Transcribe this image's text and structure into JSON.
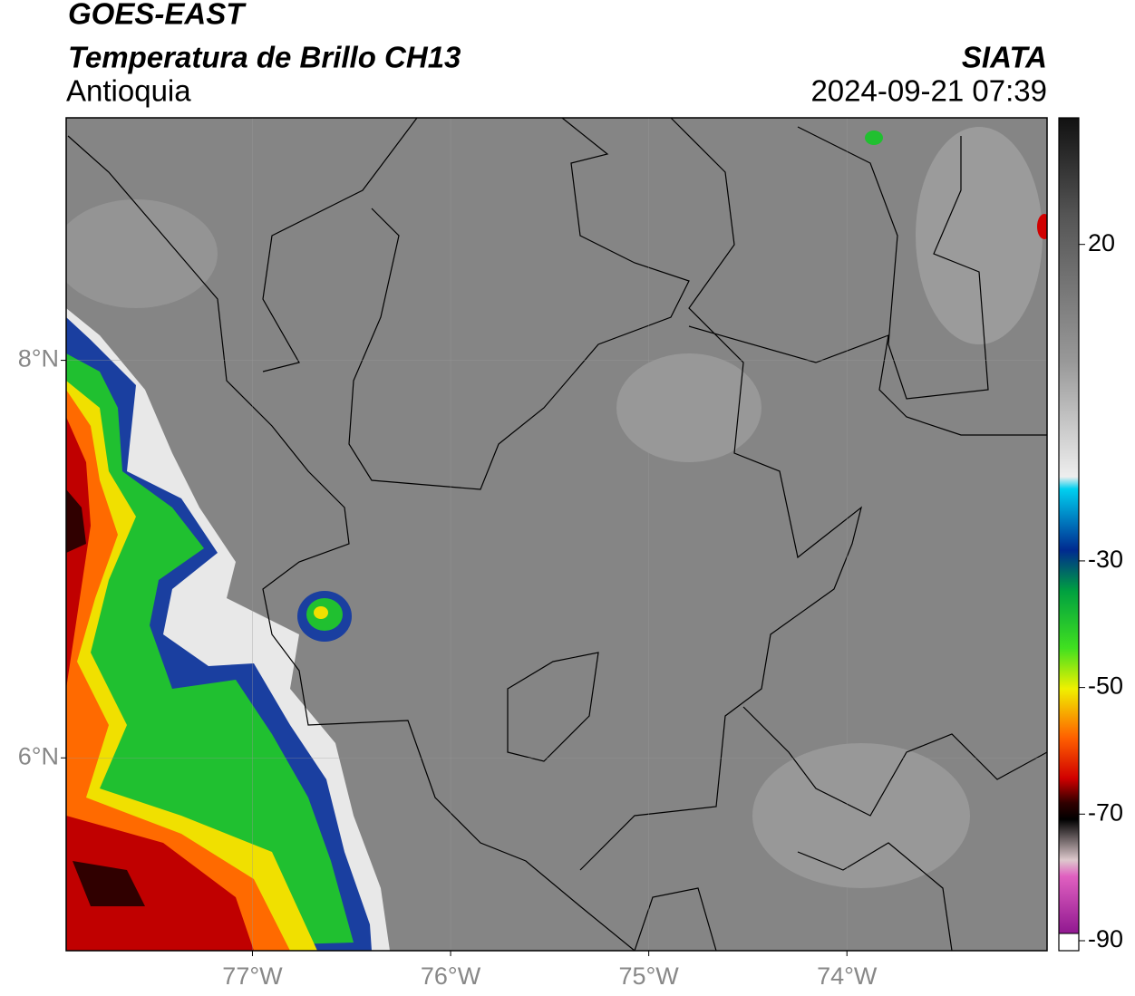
{
  "header": {
    "title": "GOES-EAST",
    "subtitle": "Temperatura de Brillo CH13",
    "region": "Antioquia",
    "source": "SIATA",
    "datetime": "2024-09-21 07:39"
  },
  "map": {
    "xlim": [
      -77.94,
      -72.99
    ],
    "ylim": [
      5.03,
      9.22
    ],
    "xticks": [
      {
        "value": -77,
        "label": "77°W"
      },
      {
        "value": -76,
        "label": "76°W"
      },
      {
        "value": -75,
        "label": "75°W"
      },
      {
        "value": -74,
        "label": "74°W"
      }
    ],
    "yticks": [
      {
        "value": 8,
        "label": "8°N"
      },
      {
        "value": 6,
        "label": "6°N"
      }
    ],
    "grid": true
  },
  "colorbar": {
    "lim": [
      -90,
      40
    ],
    "ticks": [
      20,
      -30,
      -50,
      -70,
      -90
    ]
  }
}
